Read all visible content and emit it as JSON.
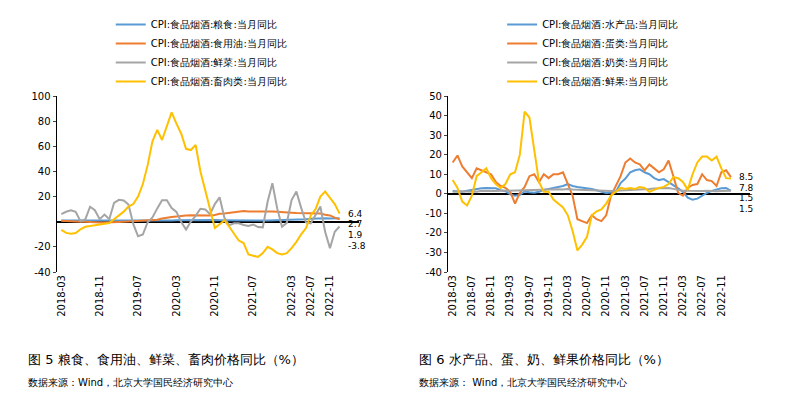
{
  "chart_data": [
    {
      "type": "line",
      "title": "图 5 粮食、食用油、鲜菜、畜肉价格同比（%）",
      "source": "数据来源：Wind，北京大学国民经济研究中心",
      "legend": "top",
      "grid": false,
      "categories": [
        "2018-03",
        null,
        null,
        null,
        null,
        null,
        null,
        null,
        "2018-11",
        null,
        null,
        null,
        null,
        null,
        null,
        null,
        "2019-07",
        null,
        null,
        null,
        null,
        null,
        null,
        null,
        "2020-03",
        null,
        null,
        null,
        null,
        null,
        null,
        null,
        "2020-11",
        null,
        null,
        null,
        null,
        null,
        null,
        null,
        "2021-07",
        null,
        null,
        null,
        null,
        null,
        null,
        null,
        "2022-03",
        null,
        null,
        null,
        "2022-07",
        null,
        null,
        null,
        "2022-11",
        null,
        null
      ],
      "ylim": [
        -40,
        100
      ],
      "yticks": [
        -40,
        -20,
        20,
        40,
        60,
        80,
        100
      ],
      "series": [
        {
          "name": "CPI:食品烟酒:粮食:当月同比",
          "color": "#5b9bd5",
          "values": [
            1.0,
            1.0,
            0.9,
            0.9,
            0.8,
            0.8,
            0.8,
            0.8,
            0.7,
            0.6,
            0.6,
            0.5,
            0.5,
            0.5,
            0.5,
            0.5,
            0.5,
            0.5,
            0.6,
            0.7,
            0.6,
            0.6,
            0.9,
            1.0,
            1.1,
            1.2,
            1.3,
            1.3,
            1.4,
            1.6,
            1.4,
            1.3,
            1.3,
            1.2,
            1.1,
            1.0,
            1.0,
            1.0,
            0.9,
            0.8,
            0.9,
            0.9,
            0.9,
            1.0,
            1.1,
            1.1,
            0.9,
            1.0,
            1.2,
            1.4,
            1.8,
            2.0,
            2.4,
            2.6,
            2.8,
            2.7,
            2.6,
            2.5,
            2.7
          ]
        },
        {
          "name": "CPI:食品烟酒:食用油:当月同比",
          "color": "#ed7d31",
          "values": [
            0.8,
            0.5,
            0.4,
            0.2,
            0.0,
            -0.1,
            -0.4,
            -0.5,
            -0.6,
            -0.6,
            -0.6,
            -0.4,
            -0.2,
            0.0,
            0.3,
            0.6,
            0.7,
            0.8,
            1.0,
            1.2,
            1.6,
            2.5,
            3.4,
            3.8,
            4.2,
            4.8,
            5.0,
            5.1,
            5.0,
            4.9,
            4.8,
            5.0,
            5.3,
            6.3,
            6.5,
            7.0,
            7.2,
            7.6,
            8.6,
            8.2,
            8.2,
            8.6,
            8.4,
            8.3,
            8.1,
            7.9,
            7.5,
            7.4,
            7.2,
            7.0,
            6.9,
            6.9,
            6.9,
            6.7,
            6.5,
            5.6,
            5.0,
            3.3,
            1.9
          ]
        },
        {
          "name": "CPI:食品烟酒:鲜菜:当月同比",
          "color": "#a5a5a5",
          "values": [
            6.0,
            7.9,
            9.1,
            7.8,
            0.4,
            1.8,
            11.9,
            9.1,
            2.0,
            5.7,
            2.0,
            15.0,
            17.4,
            16.9,
            13.7,
            -1.8,
            -11.6,
            -10.2,
            -0.4,
            3.4,
            10.6,
            17.1,
            17.1,
            10.9,
            7.8,
            -0.2,
            -6.3,
            0.1,
            4.6,
            10.3,
            9.8,
            5.9,
            14.0,
            19.4,
            3.1,
            -2.8,
            -1.3,
            -1.2,
            -2.6,
            -3.3,
            -2.2,
            -4.3,
            -4.5,
            15.9,
            30.6,
            10.6,
            -4.0,
            -0.9,
            17.2,
            24.0,
            11.0,
            -0.6,
            -1.3,
            5.7,
            12.1,
            -8.1,
            -21.1,
            -8.0,
            -3.8
          ]
        },
        {
          "name": "CPI:食品烟酒:畜肉类:当月同比",
          "color": "#ffc000",
          "values": [
            -6.5,
            -8.9,
            -9.5,
            -9.0,
            -6.0,
            -4.0,
            -3.5,
            -3.0,
            -2.0,
            -1.5,
            -1.0,
            2.0,
            5.0,
            8.0,
            12.0,
            14.0,
            20.0,
            30.0,
            45.0,
            64.0,
            73.0,
            65.0,
            76.0,
            87.0,
            78.0,
            70.0,
            58.0,
            57.0,
            61.0,
            40.0,
            25.0,
            10.0,
            -5.0,
            -2.0,
            1.0,
            -4.0,
            -10.0,
            -15.0,
            -17.0,
            -26.0,
            -27.0,
            -28.0,
            -25.0,
            -20.0,
            -22.0,
            -25.0,
            -26.0,
            -25.0,
            -21.0,
            -16.0,
            -10.0,
            -5.0,
            5.0,
            10.0,
            20.0,
            24.0,
            19.0,
            14.0,
            6.4
          ]
        }
      ],
      "annotations": [
        {
          "text": "6.4",
          "y": 6.4
        },
        {
          "text": "2.7",
          "y": 2.7
        },
        {
          "text": "1.9",
          "y": 1.9
        },
        {
          "text": "-3.8",
          "y": -3.8
        }
      ]
    },
    {
      "type": "line",
      "title": "图 6 水产品、蛋、奶、鲜果价格同比（%）",
      "source": "数据来源： Wind，北京大学国民经济研究中心",
      "legend": "top",
      "grid": false,
      "categories": [
        "2018-03",
        null,
        null,
        null,
        "2018-07",
        null,
        null,
        null,
        "2018-11",
        null,
        null,
        null,
        "2019-03",
        null,
        null,
        null,
        "2019-07",
        null,
        null,
        null,
        "2019-11",
        null,
        null,
        null,
        "2020-03",
        null,
        null,
        null,
        "2020-07",
        null,
        null,
        null,
        "2020-11",
        null,
        null,
        null,
        "2021-03",
        null,
        null,
        null,
        "2021-07",
        null,
        null,
        null,
        "2021-11",
        null,
        null,
        null,
        "2022-03",
        null,
        null,
        null,
        "2022-07",
        null,
        null,
        null,
        "2022-11",
        null,
        null
      ],
      "ylim": [
        -40,
        50
      ],
      "yticks": [
        -40,
        -30,
        -20,
        -10,
        0,
        10,
        20,
        30,
        40,
        50
      ],
      "series": [
        {
          "name": "CPI:食品烟酒:水产品:当月同比",
          "color": "#5b9bd5",
          "values": [
            1.4,
            1.2,
            1.0,
            1.5,
            2.0,
            2.3,
            2.8,
            3.0,
            3.0,
            2.8,
            1.8,
            1.3,
            -0.3,
            -1.0,
            -0.5,
            1.2,
            0.8,
            0.5,
            1.0,
            2.0,
            2.5,
            3.0,
            3.5,
            4.0,
            5.0,
            4.0,
            3.5,
            3.2,
            2.8,
            2.5,
            1.8,
            1.0,
            0.4,
            0.6,
            0.9,
            5.5,
            7.8,
            11.0,
            12.0,
            12.5,
            11.0,
            10.0,
            8.0,
            7.0,
            7.5,
            6.0,
            4.5,
            2.8,
            1.0,
            -2.0,
            -3.0,
            -2.5,
            -1.0,
            0.5,
            1.5,
            2.3,
            2.8,
            3.0,
            1.5
          ]
        },
        {
          "name": "CPI:食品烟酒:蛋类:当月同比",
          "color": "#ed7d31",
          "values": [
            16.0,
            19.6,
            14.0,
            11.0,
            8.0,
            13.0,
            12.0,
            11.0,
            10.0,
            6.0,
            4.0,
            3.0,
            1.0,
            -5.0,
            0.5,
            3.5,
            9.0,
            10.0,
            6.0,
            10.0,
            8.0,
            10.0,
            10.0,
            11.0,
            5.0,
            -1.0,
            -13.0,
            -14.0,
            -15.0,
            -11.0,
            -13.0,
            -14.0,
            -11.0,
            -1.0,
            4.0,
            9.0,
            16.0,
            18.0,
            16.0,
            15.0,
            12.0,
            15.0,
            13.0,
            11.0,
            12.5,
            17.0,
            9.0,
            0.5,
            -1.0,
            3.0,
            4.5,
            5.0,
            10.0,
            7.0,
            6.5,
            4.0,
            11.0,
            12.0,
            8.5
          ]
        },
        {
          "name": "CPI:食品烟酒:奶类:当月同比",
          "color": "#a5a5a5",
          "values": [
            1.0,
            1.2,
            1.3,
            1.2,
            1.1,
            1.0,
            1.5,
            1.4,
            1.4,
            1.4,
            1.5,
            1.6,
            1.6,
            1.7,
            1.8,
            1.9,
            2.0,
            2.1,
            2.2,
            2.3,
            2.3,
            2.4,
            2.3,
            2.2,
            2.4,
            2.2,
            2.1,
            2.0,
            1.9,
            1.8,
            1.6,
            1.4,
            1.3,
            1.4,
            1.5,
            1.6,
            1.7,
            1.8,
            1.9,
            2.0,
            2.2,
            2.5,
            2.7,
            2.8,
            3.0,
            3.0,
            2.5,
            2.0,
            1.6,
            1.5,
            1.4,
            1.3,
            1.4,
            1.6,
            1.4,
            1.3,
            1.4,
            1.3,
            1.5
          ]
        },
        {
          "name": "CPI:食品烟酒:鲜果:当月同比",
          "color": "#ffc000",
          "values": [
            7.0,
            3.0,
            -4.0,
            -6.0,
            -1.0,
            9.0,
            11.0,
            13.0,
            8.0,
            5.0,
            3.0,
            5.0,
            10.0,
            11.0,
            20.0,
            42.0,
            39.0,
            23.0,
            6.0,
            1.0,
            1.0,
            -3.0,
            -5.0,
            -7.0,
            -11.0,
            -19.0,
            -29.0,
            -26.0,
            -22.0,
            -11.0,
            -9.0,
            -8.0,
            -5.0,
            -1.0,
            1.0,
            3.0,
            2.5,
            3.0,
            2.5,
            3.5,
            3.0,
            1.0,
            2.0,
            3.0,
            3.5,
            5.0,
            8.5,
            8.0,
            6.0,
            2.0,
            10.0,
            16.0,
            19.0,
            19.0,
            17.0,
            19.0,
            13.0,
            8.0,
            7.8
          ]
        }
      ],
      "annotations": [
        {
          "text": "8.5",
          "y": 8.5
        },
        {
          "text": "7.8",
          "y": 7.8
        },
        {
          "text": "1.5",
          "y": 1.5
        },
        {
          "text": "1.5",
          "y": 1.5
        }
      ]
    }
  ]
}
